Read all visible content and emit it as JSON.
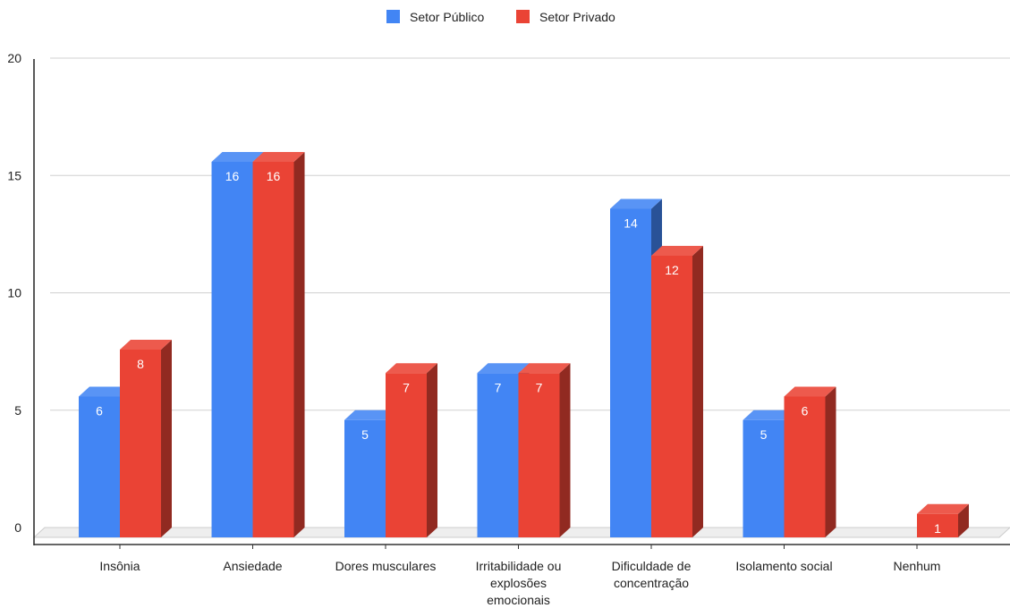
{
  "chart_data": {
    "type": "bar",
    "categories": [
      "Insônia",
      "Ansiedade",
      "Dores musculares",
      "Irritabilidade ou explosões emocionais",
      "Dificuldade de concentração",
      "Isolamento social",
      "Nenhum"
    ],
    "category_lines": [
      [
        "Insônia"
      ],
      [
        "Ansiedade"
      ],
      [
        "Dores musculares"
      ],
      [
        "Irritabilidade ou",
        "explosões",
        "emocionais"
      ],
      [
        "Dificuldade de",
        "concentração"
      ],
      [
        "Isolamento social"
      ],
      [
        "Nenhum"
      ]
    ],
    "series": [
      {
        "name": "Setor Público",
        "color": "#4285f4",
        "values": [
          6,
          16,
          5,
          7,
          14,
          5,
          0
        ]
      },
      {
        "name": "Setor Privado",
        "color": "#ea4335",
        "values": [
          8,
          16,
          7,
          7,
          12,
          6,
          1
        ]
      }
    ],
    "yticks": [
      "0",
      "5",
      "10",
      "15",
      "20"
    ],
    "ylim": [
      0,
      20
    ],
    "title": "",
    "xlabel": "",
    "ylabel": "",
    "legend_position": "top",
    "grid": true,
    "style": "3d-column"
  }
}
